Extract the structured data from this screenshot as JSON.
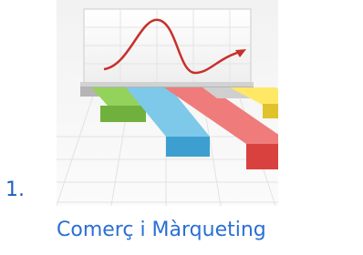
{
  "list_items": [
    {
      "number": "1.",
      "label": "Comerç i Màrqueting"
    }
  ]
}
